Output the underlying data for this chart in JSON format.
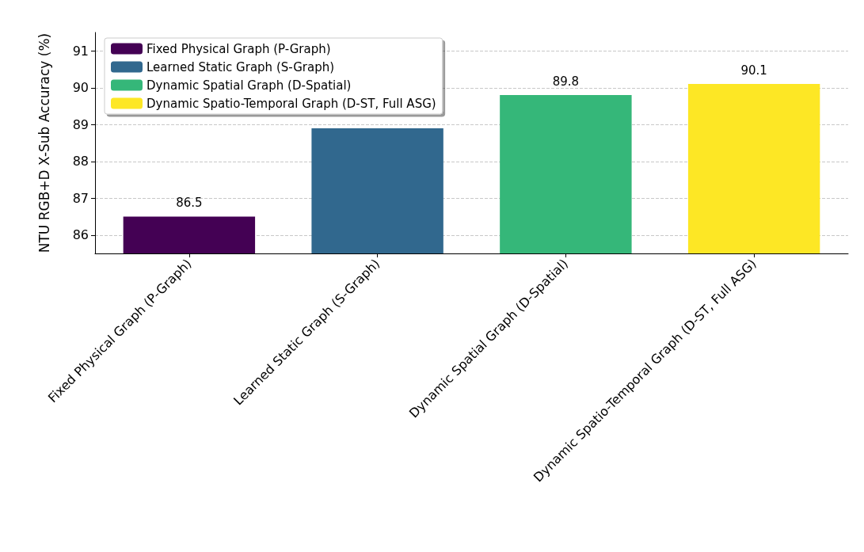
{
  "chart_data": {
    "type": "bar",
    "ylabel": "NTU RGB+D X-Sub Accuracy (%)",
    "categories": [
      "Fixed Physical Graph (P-Graph)",
      "Learned Static Graph (S-Graph)",
      "Dynamic Spatial Graph (D-Spatial)",
      "Dynamic Spatio-Temporal Graph (D-ST, Full ASG)"
    ],
    "series": [
      {
        "name": "Fixed Physical Graph (P-Graph)",
        "color": "#440154",
        "values": [
          86.5,
          null,
          null,
          null
        ]
      },
      {
        "name": "Learned Static Graph (S-Graph)",
        "color": "#31688e",
        "values": [
          null,
          88.9,
          null,
          null
        ]
      },
      {
        "name": "Dynamic Spatial Graph (D-Spatial)",
        "color": "#35b779",
        "values": [
          null,
          null,
          89.8,
          null
        ]
      },
      {
        "name": "Dynamic Spatio-Temporal Graph (D-ST, Full ASG)",
        "color": "#fde725",
        "values": [
          null,
          null,
          null,
          90.1
        ]
      }
    ],
    "value_labels": [
      "86.5",
      null,
      "89.8",
      "90.1"
    ],
    "ylim": [
      85.5,
      91.5
    ],
    "yticks": [
      86,
      87,
      88,
      89,
      90,
      91
    ],
    "grid": "y",
    "legend": "top left"
  }
}
